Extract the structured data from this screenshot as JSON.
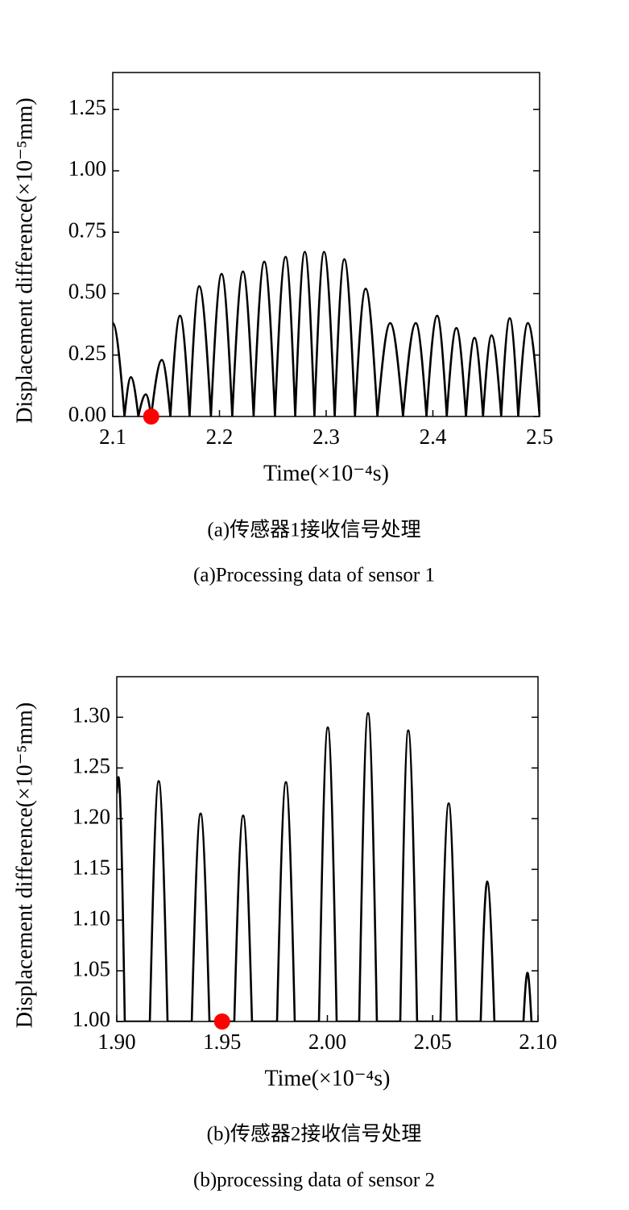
{
  "chart_data": [
    {
      "type": "line",
      "xlabel": "Time(×10⁻⁴s)",
      "ylabel": "Displacement difference(×10⁻⁵mm)",
      "captions": [
        "(a)传感器1接收信号处理",
        "(a)Processing data of sensor 1"
      ],
      "xlim": [
        2.1,
        2.5
      ],
      "xticks": [
        2.1,
        2.2,
        2.3,
        2.4,
        2.5
      ],
      "ylim": [
        0,
        1.4
      ],
      "yticks": [
        {
          "value": 0,
          "label": "0.00"
        },
        {
          "value": 0.25,
          "label": "0.25"
        },
        {
          "value": 0.5,
          "label": "0.50"
        },
        {
          "value": 0.75,
          "label": "0.75"
        },
        {
          "value": 1,
          "label": "1.00"
        },
        {
          "value": 1.25,
          "label": "1.25"
        }
      ],
      "color": "#000000",
      "x": [
        2.1,
        2.111,
        2.117,
        2.124,
        2.131,
        2.136,
        2.146,
        2.154,
        2.163,
        2.172,
        2.181,
        2.192,
        2.202,
        2.212,
        2.222,
        2.232,
        2.242,
        2.252,
        2.262,
        2.271,
        2.28,
        2.289,
        2.298,
        2.308,
        2.317,
        2.327,
        2.337,
        2.348,
        2.36,
        2.372,
        2.384,
        2.394,
        2.404,
        2.413,
        2.422,
        2.431,
        2.439,
        2.447,
        2.455,
        2.464,
        2.472,
        2.48,
        2.489,
        2.5
      ],
      "values": [
        0.38,
        0,
        0.16,
        0,
        0.09,
        0,
        0.23,
        0,
        0.41,
        0,
        0.53,
        0,
        0.58,
        0,
        0.59,
        0,
        0.63,
        0,
        0.65,
        0,
        0.67,
        0,
        0.67,
        0,
        0.64,
        0,
        0.52,
        0,
        0.38,
        0,
        0.38,
        0,
        0.41,
        0,
        0.36,
        0,
        0.32,
        0,
        0.33,
        0,
        0.4,
        0,
        0.38,
        0
      ],
      "markers": {
        "x": [
          2.136
        ],
        "y": [
          0
        ],
        "color": "#ff0000"
      }
    },
    {
      "type": "line",
      "xlabel": "Time(×10⁻⁴s)",
      "ylabel": "Displacement difference(×10⁻⁵mm)",
      "captions": [
        "(b)传感器2接收信号处理",
        "(b)processing data of sensor 2"
      ],
      "xlim": [
        1.9,
        2.1
      ],
      "xticks": [
        {
          "value": 1.9,
          "label": "1.90"
        },
        {
          "value": 1.95,
          "label": "1.95"
        },
        {
          "value": 2.0,
          "label": "2.00"
        },
        {
          "value": 2.05,
          "label": "2.05"
        },
        {
          "value": 2.1,
          "label": "2.10"
        }
      ],
      "ylim": [
        1.0,
        1.34
      ],
      "yticks": [
        {
          "value": 1.0,
          "label": "1.00"
        },
        {
          "value": 1.05,
          "label": "1.05"
        },
        {
          "value": 1.1,
          "label": "1.10"
        },
        {
          "value": 1.15,
          "label": "1.15"
        },
        {
          "value": 1.2,
          "label": "1.20"
        },
        {
          "value": 1.25,
          "label": "1.25"
        },
        {
          "value": 1.3,
          "label": "1.30"
        }
      ],
      "color": "#000000",
      "x": [
        1.9,
        1.9008,
        1.9038,
        1.9157,
        1.9199,
        1.9241,
        1.9356,
        1.9398,
        1.944,
        1.9558,
        1.96,
        1.9642,
        1.9761,
        1.9803,
        1.9845,
        1.996,
        2.0002,
        2.0044,
        2.0151,
        2.0193,
        2.0235,
        2.0346,
        2.0384,
        2.0426,
        2.0537,
        2.0576,
        2.0614,
        2.0728,
        2.0759,
        2.0793,
        2.0931,
        2.095,
        2.0969
      ],
      "values": [
        1.225,
        1.241,
        1.0,
        1.0,
        1.237,
        1.0,
        1.0,
        1.205,
        1.0,
        1.0,
        1.203,
        1.0,
        1.0,
        1.236,
        1.0,
        1.0,
        1.29,
        1.0,
        1.0,
        1.304,
        1.0,
        1.0,
        1.287,
        1.0,
        1.0,
        1.215,
        1.0,
        1.0,
        1.138,
        1.0,
        1.0,
        1.048,
        1.0
      ],
      "markers": {
        "x": [
          1.95
        ],
        "y": [
          1.0
        ],
        "color": "#ff0000"
      }
    }
  ]
}
